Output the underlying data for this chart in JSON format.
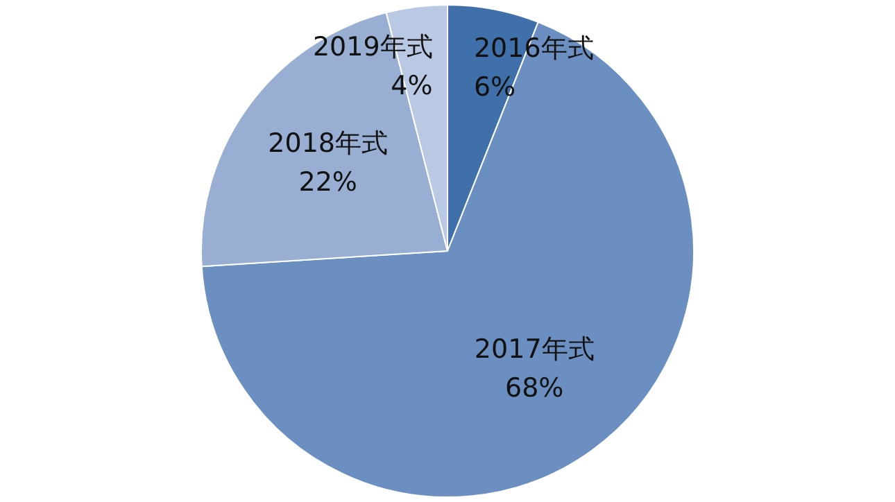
{
  "chart_data": {
    "type": "pie",
    "categories": [
      "2016年式",
      "2017年式",
      "2018年式",
      "2019年式"
    ],
    "values": [
      6,
      68,
      22,
      4
    ],
    "colors": [
      "#3f70aa",
      "#6b8fc1",
      "#98aed2",
      "#b9c9e3"
    ],
    "value_labels": [
      "6%",
      "68%",
      "22%",
      "4%"
    ],
    "legend": false
  }
}
